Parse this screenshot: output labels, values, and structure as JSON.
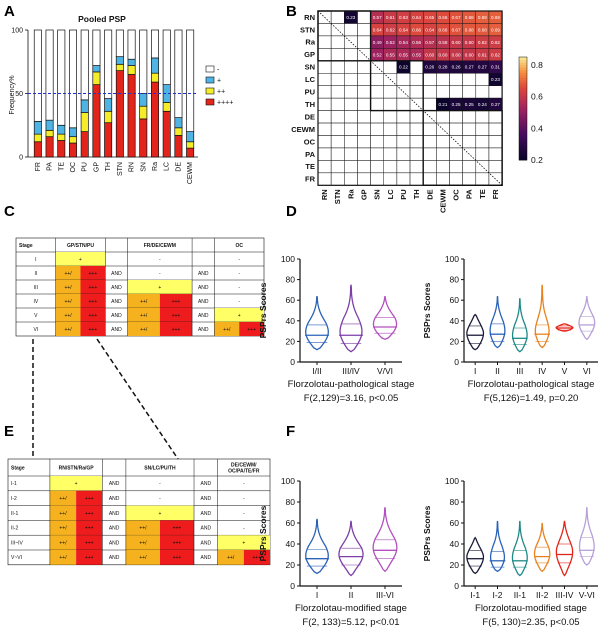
{
  "panel_labels": [
    "A",
    "B",
    "C",
    "D",
    "E",
    "F"
  ],
  "colors": {
    "white": "#ffffff",
    "light_blue": "#4fb3e3",
    "yellow": "#f5ec2a",
    "red": "#e3241b",
    "ref_line": "#2233cc",
    "table_yellow": "#ffff66",
    "table_orange": "#f6b21e",
    "table_red": "#ee1c1c"
  },
  "chart_data": [
    {
      "id": "A",
      "type": "bar",
      "stacked": true,
      "title": "Pooled PSP",
      "xlabel": "",
      "ylabel": "Frequency%",
      "ylim": [
        0,
        100
      ],
      "yticks": [
        0,
        50,
        100
      ],
      "reference_line": 50,
      "categories": [
        "FR",
        "PA",
        "TE",
        "OC",
        "PU",
        "GP",
        "TH",
        "STN",
        "RN",
        "SN",
        "Ra",
        "LC",
        "DE",
        "CEWM"
      ],
      "legend": [
        "-",
        "+",
        "++",
        "++++"
      ],
      "series": [
        {
          "name": "++++",
          "color": "#e3241b",
          "values": [
            12,
            16,
            13,
            11,
            20,
            57,
            27,
            68,
            65,
            30,
            59,
            36,
            17,
            7
          ]
        },
        {
          "name": "++",
          "color": "#f5ec2a",
          "values": [
            6,
            5,
            5,
            5,
            15,
            10,
            9,
            5,
            7,
            10,
            7,
            7,
            6,
            5
          ]
        },
        {
          "name": "+",
          "color": "#4fb3e3",
          "values": [
            10,
            8,
            7,
            7,
            10,
            5,
            10,
            6,
            5,
            10,
            12,
            14,
            8,
            8
          ]
        },
        {
          "name": "-",
          "color": "#ffffff",
          "values": [
            72,
            71,
            75,
            77,
            55,
            28,
            54,
            21,
            23,
            50,
            22,
            43,
            69,
            80
          ]
        }
      ]
    },
    {
      "id": "B",
      "type": "heatmap",
      "row_labels": [
        "RN",
        "STN",
        "Ra",
        "GP",
        "SN",
        "LC",
        "PU",
        "TH",
        "DE",
        "CEWM",
        "OC",
        "PA",
        "TE",
        "FR"
      ],
      "col_labels": [
        "RN",
        "STN",
        "Ra",
        "GP",
        "SN",
        "LC",
        "PU",
        "TH",
        "DE",
        "CEWM",
        "OC",
        "PA",
        "TE",
        "FR"
      ],
      "colorbar_ticks": [
        0.2,
        0.4,
        0.6,
        0.8
      ],
      "colorbar_range": [
        0.2,
        0.85
      ],
      "cells": [
        {
          "r": 0,
          "c": 2,
          "v": "0.23"
        },
        {
          "r": 0,
          "c": 4,
          "v": "0.57"
        },
        {
          "r": 0,
          "c": 5,
          "v": "0.61"
        },
        {
          "r": 0,
          "c": 6,
          "v": "0.63"
        },
        {
          "r": 0,
          "c": 7,
          "v": "0.64"
        },
        {
          "r": 0,
          "c": 8,
          "v": "0.65"
        },
        {
          "r": 0,
          "c": 9,
          "v": "0.66"
        },
        {
          "r": 0,
          "c": 10,
          "v": "0.67"
        },
        {
          "r": 0,
          "c": 11,
          "v": "0.68"
        },
        {
          "r": 0,
          "c": 12,
          "v": "0.69"
        },
        {
          "r": 0,
          "c": 13,
          "v": "0.69"
        },
        {
          "r": 1,
          "c": 4,
          "v": "0.64"
        },
        {
          "r": 1,
          "c": 5,
          "v": "0.62"
        },
        {
          "r": 1,
          "c": 6,
          "v": "0.64"
        },
        {
          "r": 1,
          "c": 7,
          "v": "0.66"
        },
        {
          "r": 1,
          "c": 8,
          "v": "0.64"
        },
        {
          "r": 1,
          "c": 9,
          "v": "0.66"
        },
        {
          "r": 1,
          "c": 10,
          "v": "0.67"
        },
        {
          "r": 1,
          "c": 11,
          "v": "0.68"
        },
        {
          "r": 1,
          "c": 12,
          "v": "0.68"
        },
        {
          "r": 1,
          "c": 13,
          "v": "0.69"
        },
        {
          "r": 2,
          "c": 4,
          "v": "0.49"
        },
        {
          "r": 2,
          "c": 5,
          "v": "0.52"
        },
        {
          "r": 2,
          "c": 6,
          "v": "0.54"
        },
        {
          "r": 2,
          "c": 7,
          "v": "0.56"
        },
        {
          "r": 2,
          "c": 8,
          "v": "0.57"
        },
        {
          "r": 2,
          "c": 9,
          "v": "0.58"
        },
        {
          "r": 2,
          "c": 10,
          "v": "0.60"
        },
        {
          "r": 2,
          "c": 11,
          "v": "0.60"
        },
        {
          "r": 2,
          "c": 12,
          "v": "0.62"
        },
        {
          "r": 2,
          "c": 13,
          "v": "0.62"
        },
        {
          "r": 3,
          "c": 4,
          "v": "0.52"
        },
        {
          "r": 3,
          "c": 5,
          "v": "0.55"
        },
        {
          "r": 3,
          "c": 6,
          "v": "0.55"
        },
        {
          "r": 3,
          "c": 7,
          "v": "0.55"
        },
        {
          "r": 3,
          "c": 8,
          "v": "0.60"
        },
        {
          "r": 3,
          "c": 9,
          "v": "0.60"
        },
        {
          "r": 3,
          "c": 10,
          "v": "0.60"
        },
        {
          "r": 3,
          "c": 11,
          "v": "0.60"
        },
        {
          "r": 3,
          "c": 12,
          "v": "0.61"
        },
        {
          "r": 3,
          "c": 13,
          "v": "0.62"
        },
        {
          "r": 4,
          "c": 6,
          "v": "0.22"
        },
        {
          "r": 4,
          "c": 8,
          "v": "0.26"
        },
        {
          "r": 4,
          "c": 9,
          "v": "0.28"
        },
        {
          "r": 4,
          "c": 10,
          "v": "0.26"
        },
        {
          "r": 4,
          "c": 11,
          "v": "0.27"
        },
        {
          "r": 4,
          "c": 12,
          "v": "0.27"
        },
        {
          "r": 4,
          "c": 13,
          "v": "0.31"
        },
        {
          "r": 5,
          "c": 13,
          "v": "0.23"
        },
        {
          "r": 7,
          "c": 9,
          "v": "0.21"
        },
        {
          "r": 7,
          "c": 10,
          "v": "0.25"
        },
        {
          "r": 7,
          "c": 11,
          "v": "0.25"
        },
        {
          "r": 7,
          "c": 12,
          "v": "0.24"
        },
        {
          "r": 7,
          "c": 13,
          "v": "0.27"
        }
      ]
    },
    {
      "id": "D-left",
      "type": "violin",
      "ylabel": "PSPrs Scores",
      "ylim": [
        0,
        100
      ],
      "yticks": [
        0,
        20,
        40,
        60,
        80,
        100
      ],
      "categories": [
        "I/II",
        "III/IV",
        "V/VI"
      ],
      "xlabel": "Florzolotau-pathological stage",
      "stat": "F(2,129)=3.16, p<0.05",
      "violins": [
        {
          "name": "I/II",
          "color": "#2a62b8",
          "min": 12,
          "max": 64,
          "q1": 19,
          "median": 26,
          "q3": 36
        },
        {
          "name": "III/IV",
          "color": "#7d3ea8",
          "min": 10,
          "max": 75,
          "q1": 18,
          "median": 26,
          "q3": 37
        },
        {
          "name": "V/VI",
          "color": "#b34fbf",
          "min": 22,
          "max": 64,
          "q1": 28,
          "median": 34,
          "q3": 43
        }
      ]
    },
    {
      "id": "D-right",
      "type": "violin",
      "ylabel": "PSPrs Scores",
      "ylim": [
        0,
        100
      ],
      "yticks": [
        0,
        20,
        40,
        60,
        80,
        100
      ],
      "categories": [
        "I",
        "II",
        "III",
        "IV",
        "V",
        "VI"
      ],
      "xlabel": "Florzolotau-pathological stage",
      "stat": "F(5,126)=1.49, p=0.20",
      "violins": [
        {
          "name": "I",
          "color": "#1b1b3a",
          "min": 12,
          "max": 46,
          "q1": 18,
          "median": 26,
          "q3": 35
        },
        {
          "name": "II",
          "color": "#2a62b8",
          "min": 14,
          "max": 64,
          "q1": 20,
          "median": 27,
          "q3": 37
        },
        {
          "name": "III",
          "color": "#1d8a86",
          "min": 10,
          "max": 62,
          "q1": 17,
          "median": 23,
          "q3": 33
        },
        {
          "name": "IV",
          "color": "#e8821e",
          "min": 14,
          "max": 75,
          "q1": 20,
          "median": 27,
          "q3": 36
        },
        {
          "name": "V",
          "color": "#e3241b",
          "min": 30,
          "max": 37,
          "q1": 31,
          "median": 33,
          "q3": 35
        },
        {
          "name": "VI",
          "color": "#b7a0d8",
          "min": 22,
          "max": 64,
          "q1": 30,
          "median": 36,
          "q3": 44
        }
      ]
    },
    {
      "id": "F-left",
      "type": "violin",
      "ylabel": "PSPrs Scores",
      "ylim": [
        0,
        100
      ],
      "yticks": [
        0,
        20,
        40,
        60,
        80,
        100
      ],
      "categories": [
        "I",
        "II",
        "III-VI"
      ],
      "xlabel": "Florzolotau-modified  stage",
      "stat": "F(2, 133)=5.12, p<0.01",
      "violins": [
        {
          "name": "I",
          "color": "#2a62b8",
          "min": 12,
          "max": 64,
          "q1": 19,
          "median": 26,
          "q3": 35
        },
        {
          "name": "II",
          "color": "#7d3ea8",
          "min": 10,
          "max": 62,
          "q1": 20,
          "median": 28,
          "q3": 36
        },
        {
          "name": "III-VI",
          "color": "#b34fbf",
          "min": 14,
          "max": 75,
          "q1": 26,
          "median": 34,
          "q3": 44
        }
      ]
    },
    {
      "id": "F-right",
      "type": "violin",
      "ylabel": "PSPrs Scores",
      "ylim": [
        0,
        100
      ],
      "yticks": [
        0,
        20,
        40,
        60,
        80,
        100
      ],
      "categories": [
        "I-1",
        "I-2",
        "II-1",
        "II-2",
        "III-IV",
        "V-VI"
      ],
      "xlabel": "Florzolotau-modified  stage",
      "stat": "F(5, 130)=2.35, p<0.05",
      "violins": [
        {
          "name": "I-1",
          "color": "#1b1b3a",
          "min": 12,
          "max": 46,
          "q1": 19,
          "median": 26,
          "q3": 34
        },
        {
          "name": "I-2",
          "color": "#2a62b8",
          "min": 14,
          "max": 62,
          "q1": 18,
          "median": 24,
          "q3": 33
        },
        {
          "name": "II-1",
          "color": "#1d8a86",
          "min": 10,
          "max": 62,
          "q1": 18,
          "median": 24,
          "q3": 34
        },
        {
          "name": "II-2",
          "color": "#e8821e",
          "min": 14,
          "max": 60,
          "q1": 22,
          "median": 28,
          "q3": 37
        },
        {
          "name": "III-IV",
          "color": "#e3241b",
          "min": 10,
          "max": 62,
          "q1": 22,
          "median": 30,
          "q3": 40
        },
        {
          "name": "V-VI",
          "color": "#b7a0d8",
          "min": 20,
          "max": 75,
          "q1": 28,
          "median": 34,
          "q3": 46
        }
      ]
    }
  ],
  "table_C": {
    "headers": [
      "Stage",
      "GP/STN/PU",
      "",
      "FR/DE/CEWM",
      "",
      "OC"
    ],
    "rows": [
      {
        "stage": "I",
        "a": [
          "+"
        ],
        "and1": "",
        "b": "-",
        "and2": "",
        "c": "-",
        "a_style": "y",
        "b_style": "",
        "c_style": ""
      },
      {
        "stage": "II",
        "a": [
          "++/",
          "+++"
        ],
        "and1": "AND",
        "b": "-",
        "and2": "AND",
        "c": "-",
        "a_style": "or",
        "b_style": "",
        "c_style": ""
      },
      {
        "stage": "III",
        "a": [
          "++/",
          "+++"
        ],
        "and1": "AND",
        "b": "+",
        "and2": "AND",
        "c": "-",
        "a_style": "or",
        "b_style": "y",
        "c_style": ""
      },
      {
        "stage": "IV",
        "a": [
          "++/",
          "+++"
        ],
        "and1": "AND",
        "b": [
          "++/",
          "+++"
        ],
        "and2": "AND",
        "c": "-",
        "a_style": "or",
        "b_style": "or",
        "c_style": ""
      },
      {
        "stage": "V",
        "a": [
          "++/",
          "+++"
        ],
        "and1": "AND",
        "b": [
          "++/",
          "+++"
        ],
        "and2": "AND",
        "c": "+",
        "a_style": "or",
        "b_style": "or",
        "c_style": "y"
      },
      {
        "stage": "VI",
        "a": [
          "++/",
          "+++"
        ],
        "and1": "AND",
        "b": [
          "++/",
          "+++"
        ],
        "and2": "AND",
        "c": [
          "++/",
          "+++"
        ],
        "a_style": "or",
        "b_style": "or",
        "c_style": "or"
      }
    ]
  },
  "table_E": {
    "headers": [
      "Stage",
      "RN/STN/Ra/GP",
      "",
      "SN/LC/PU/TH",
      "",
      "DE/CEWM/",
      "OC/PA/TE/FR"
    ],
    "rows": [
      {
        "stage": "I-1",
        "a": [
          "+"
        ],
        "and1": "AND",
        "b": "-",
        "and2": "AND",
        "c": "-",
        "a_style": "y",
        "b_style": "",
        "c_style": ""
      },
      {
        "stage": "I-2",
        "a": [
          "++/",
          "+++"
        ],
        "and1": "AND",
        "b": "-",
        "and2": "AND",
        "c": "-",
        "a_style": "or",
        "b_style": "",
        "c_style": ""
      },
      {
        "stage": "II-1",
        "a": [
          "++/",
          "+++"
        ],
        "and1": "AND",
        "b": "+",
        "and2": "AND",
        "c": "-",
        "a_style": "or",
        "b_style": "y",
        "c_style": ""
      },
      {
        "stage": "II-2",
        "a": [
          "++/",
          "+++"
        ],
        "and1": "AND",
        "b": [
          "++/",
          "+++"
        ],
        "and2": "AND",
        "c": "-",
        "a_style": "or",
        "b_style": "or",
        "c_style": ""
      },
      {
        "stage": "III~IV",
        "a": [
          "++/",
          "+++"
        ],
        "and1": "AND",
        "b": [
          "++/",
          "+++"
        ],
        "and2": "AND",
        "c": "+",
        "a_style": "or",
        "b_style": "or",
        "c_style": "y"
      },
      {
        "stage": "V~VI",
        "a": [
          "++/",
          "+++"
        ],
        "and1": "AND",
        "b": [
          "++/",
          "+++"
        ],
        "and2": "AND",
        "c": [
          "++/",
          "+++"
        ],
        "a_style": "or",
        "b_style": "or",
        "c_style": "or"
      }
    ]
  }
}
